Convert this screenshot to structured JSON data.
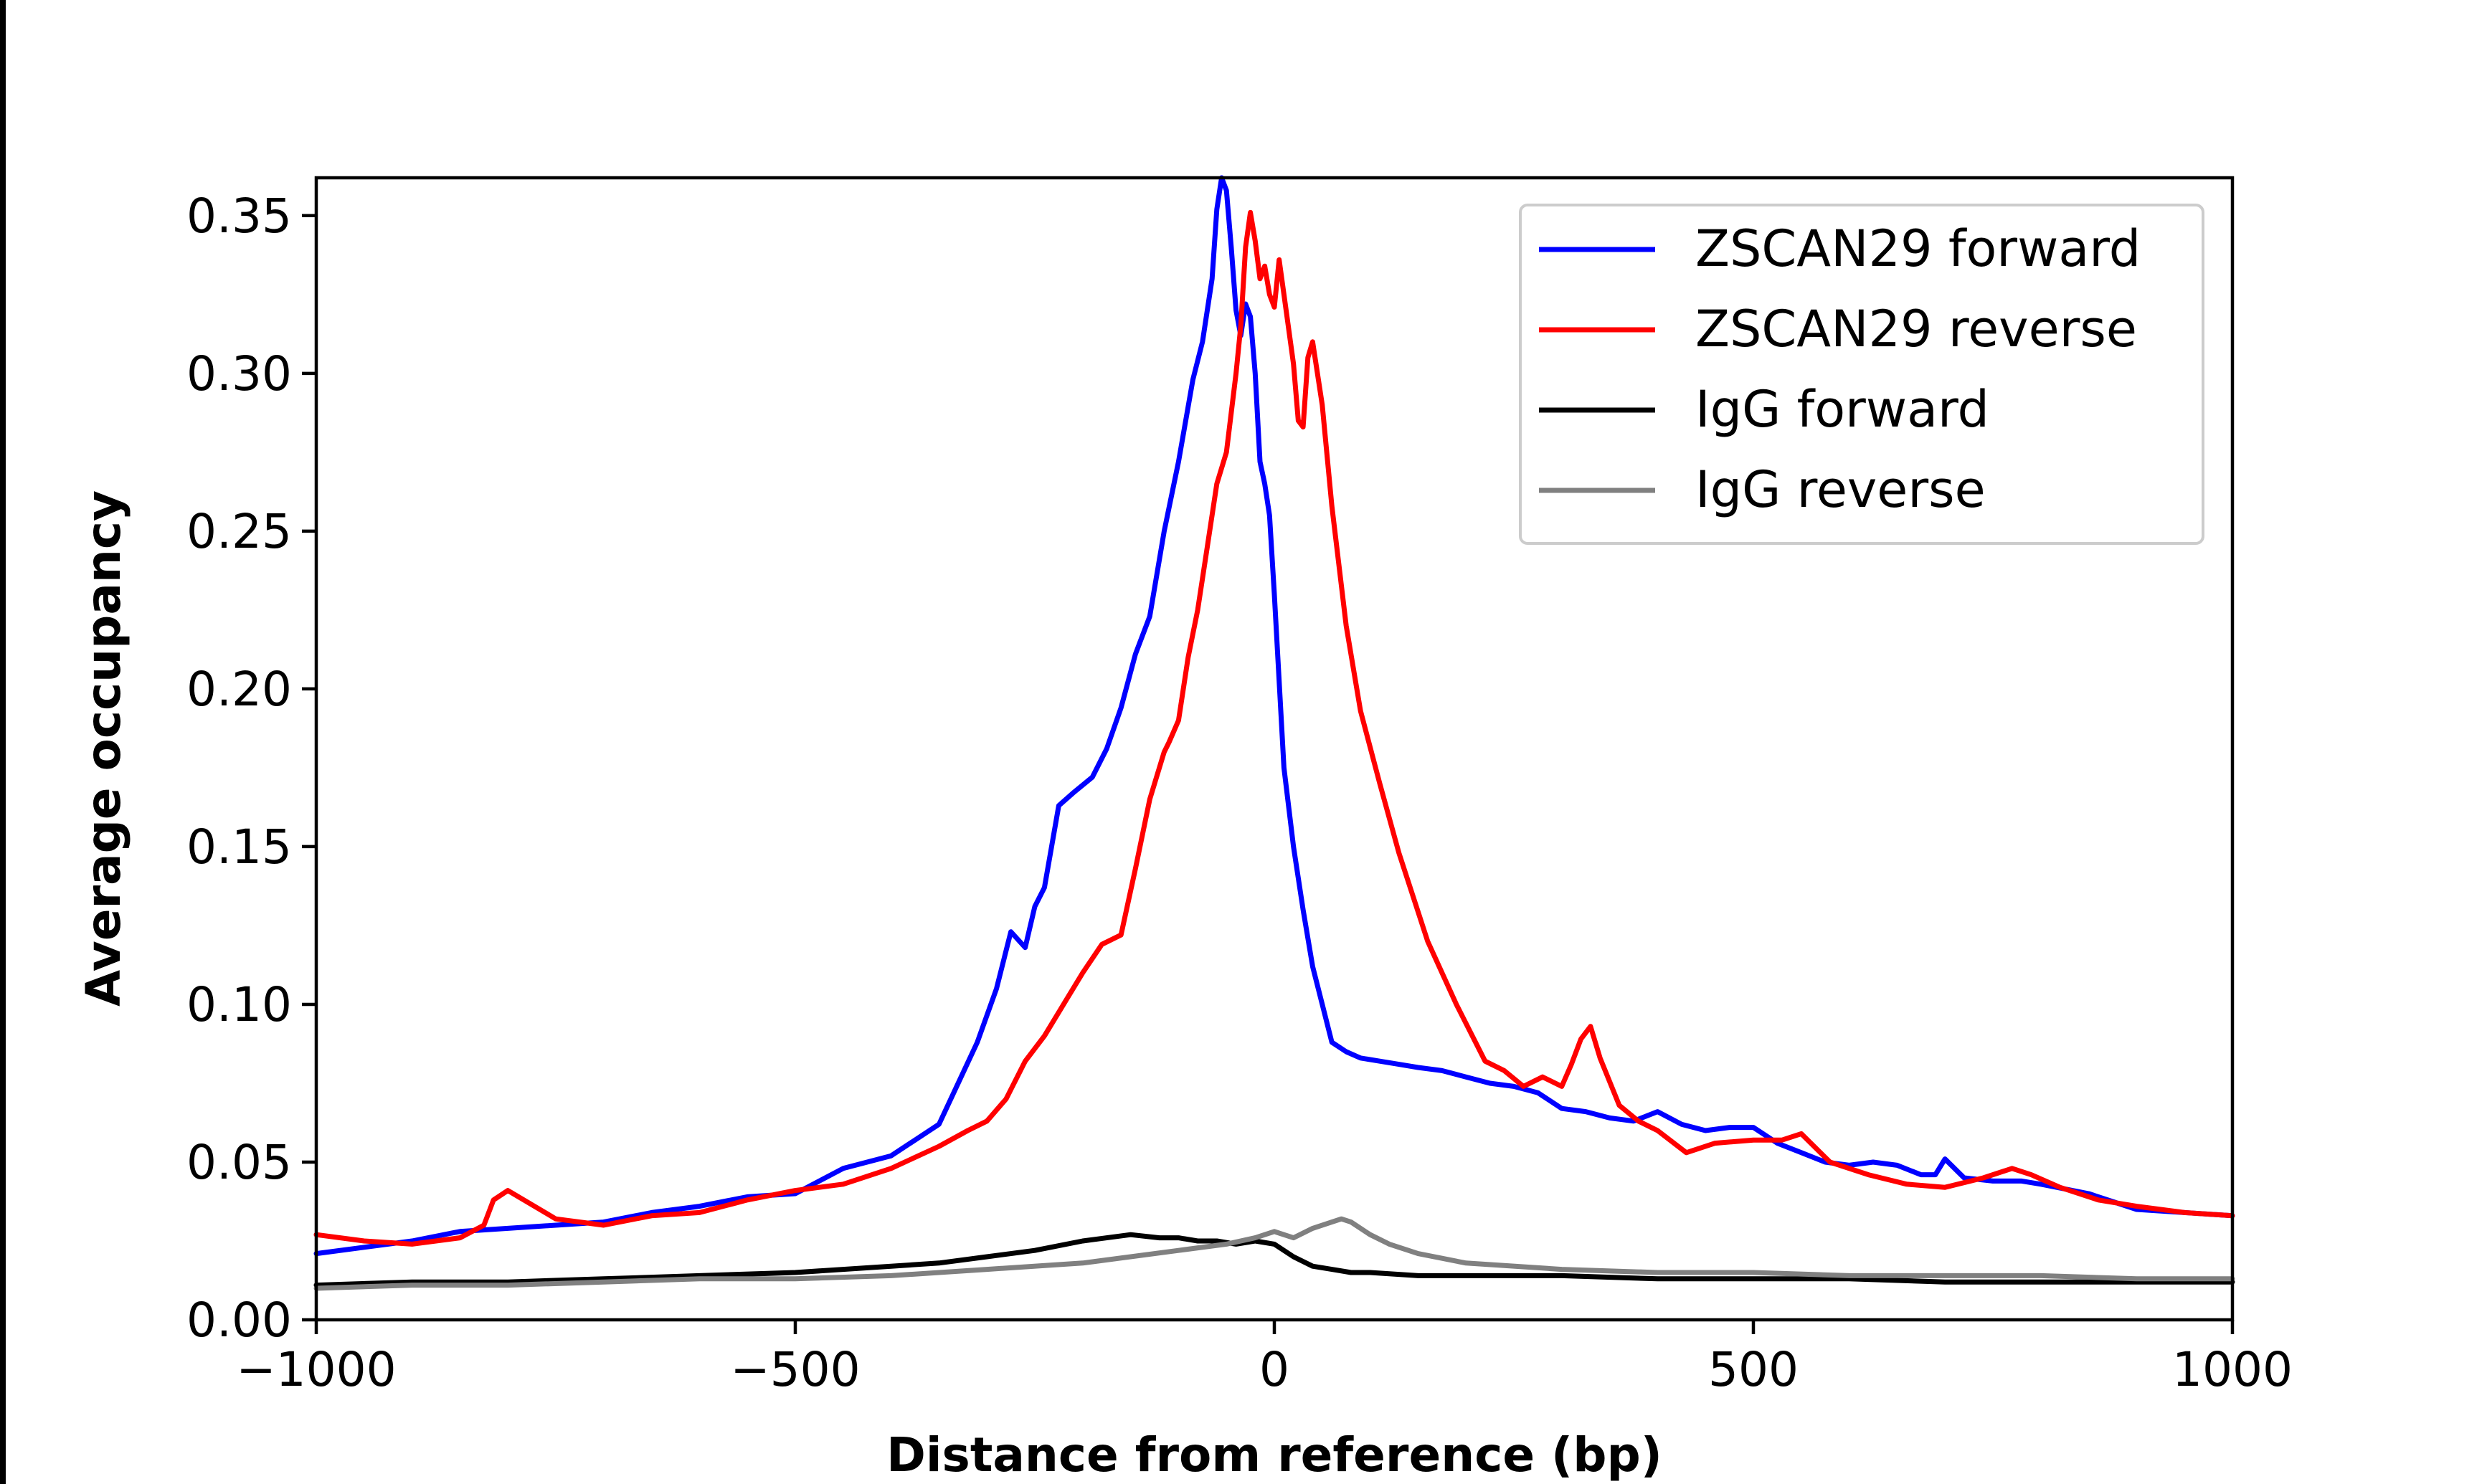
{
  "chart_data": {
    "type": "line",
    "title": "",
    "xlabel": "Distance from reference (bp)",
    "ylabel": "Average occupancy",
    "xlim": [
      -1000,
      1000
    ],
    "ylim": [
      0,
      0.362
    ],
    "x_ticks": [
      -1000,
      -500,
      0,
      500,
      1000
    ],
    "x_tick_labels": [
      "−1000",
      "−500",
      "0",
      "500",
      "1000"
    ],
    "y_ticks": [
      0.0,
      0.05,
      0.1,
      0.15,
      0.2,
      0.25,
      0.3,
      0.35
    ],
    "y_tick_labels": [
      "0.00",
      "0.05",
      "0.10",
      "0.15",
      "0.20",
      "0.25",
      "0.30",
      "0.35"
    ],
    "grid": false,
    "legend_position": "top-right",
    "series": [
      {
        "name": "ZSCAN29 forward",
        "color": "#0000ff",
        "x": [
          -1000,
          -950,
          -900,
          -850,
          -800,
          -750,
          -700,
          -650,
          -600,
          -550,
          -500,
          -450,
          -400,
          -350,
          -330,
          -310,
          -290,
          -275,
          -260,
          -250,
          -240,
          -225,
          -210,
          -190,
          -175,
          -160,
          -145,
          -130,
          -115,
          -100,
          -85,
          -75,
          -65,
          -60,
          -55,
          -50,
          -45,
          -40,
          -35,
          -30,
          -25,
          -20,
          -15,
          -10,
          -5,
          0,
          10,
          20,
          30,
          40,
          50,
          60,
          75,
          90,
          110,
          130,
          150,
          175,
          200,
          225,
          250,
          275,
          300,
          325,
          350,
          375,
          400,
          425,
          450,
          475,
          500,
          525,
          550,
          575,
          600,
          625,
          650,
          675,
          690,
          700,
          720,
          750,
          780,
          800,
          850,
          900,
          950,
          1000
        ],
        "y": [
          0.021,
          0.023,
          0.025,
          0.028,
          0.029,
          0.03,
          0.031,
          0.034,
          0.036,
          0.039,
          0.04,
          0.048,
          0.052,
          0.062,
          0.075,
          0.088,
          0.105,
          0.123,
          0.118,
          0.131,
          0.137,
          0.163,
          0.167,
          0.172,
          0.181,
          0.194,
          0.211,
          0.223,
          0.25,
          0.272,
          0.298,
          0.31,
          0.33,
          0.352,
          0.362,
          0.358,
          0.34,
          0.32,
          0.312,
          0.322,
          0.318,
          0.3,
          0.272,
          0.265,
          0.255,
          0.23,
          0.175,
          0.15,
          0.13,
          0.112,
          0.1,
          0.088,
          0.085,
          0.083,
          0.082,
          0.081,
          0.08,
          0.079,
          0.077,
          0.075,
          0.074,
          0.072,
          0.067,
          0.066,
          0.064,
          0.063,
          0.066,
          0.062,
          0.06,
          0.061,
          0.061,
          0.056,
          0.053,
          0.05,
          0.049,
          0.05,
          0.049,
          0.046,
          0.046,
          0.051,
          0.045,
          0.044,
          0.044,
          0.043,
          0.04,
          0.035,
          0.034,
          0.033
        ]
      },
      {
        "name": "ZSCAN29 reverse",
        "color": "#ff0000",
        "x": [
          -1000,
          -950,
          -900,
          -850,
          -825,
          -815,
          -800,
          -750,
          -700,
          -650,
          -600,
          -550,
          -500,
          -450,
          -400,
          -350,
          -320,
          -300,
          -280,
          -260,
          -240,
          -220,
          -200,
          -180,
          -160,
          -145,
          -130,
          -115,
          -110,
          -100,
          -90,
          -80,
          -70,
          -60,
          -50,
          -40,
          -35,
          -30,
          -25,
          -20,
          -15,
          -10,
          -5,
          0,
          5,
          10,
          20,
          25,
          30,
          35,
          40,
          50,
          60,
          75,
          90,
          110,
          130,
          160,
          190,
          220,
          240,
          260,
          280,
          300,
          310,
          320,
          330,
          340,
          360,
          380,
          400,
          430,
          460,
          500,
          530,
          550,
          580,
          620,
          660,
          700,
          740,
          770,
          790,
          820,
          860,
          900,
          950,
          1000
        ],
        "y": [
          0.027,
          0.025,
          0.024,
          0.026,
          0.03,
          0.038,
          0.041,
          0.032,
          0.03,
          0.033,
          0.034,
          0.038,
          0.041,
          0.043,
          0.048,
          0.055,
          0.06,
          0.063,
          0.07,
          0.082,
          0.09,
          0.1,
          0.11,
          0.119,
          0.122,
          0.143,
          0.165,
          0.18,
          0.183,
          0.19,
          0.21,
          0.225,
          0.245,
          0.265,
          0.275,
          0.3,
          0.315,
          0.34,
          0.351,
          0.342,
          0.33,
          0.334,
          0.325,
          0.321,
          0.336,
          0.325,
          0.303,
          0.285,
          0.283,
          0.305,
          0.31,
          0.29,
          0.258,
          0.22,
          0.193,
          0.17,
          0.148,
          0.12,
          0.1,
          0.082,
          0.079,
          0.074,
          0.077,
          0.074,
          0.081,
          0.089,
          0.093,
          0.083,
          0.068,
          0.063,
          0.06,
          0.053,
          0.056,
          0.057,
          0.057,
          0.059,
          0.05,
          0.046,
          0.043,
          0.042,
          0.045,
          0.048,
          0.046,
          0.042,
          0.038,
          0.036,
          0.034,
          0.033
        ]
      },
      {
        "name": "IgG forward",
        "color": "#000000",
        "x": [
          -1000,
          -900,
          -800,
          -700,
          -600,
          -500,
          -400,
          -350,
          -300,
          -250,
          -200,
          -150,
          -120,
          -100,
          -80,
          -60,
          -40,
          -20,
          0,
          20,
          40,
          60,
          80,
          100,
          150,
          200,
          300,
          400,
          500,
          600,
          700,
          800,
          900,
          1000
        ],
        "y": [
          0.011,
          0.012,
          0.012,
          0.013,
          0.014,
          0.015,
          0.017,
          0.018,
          0.02,
          0.022,
          0.025,
          0.027,
          0.026,
          0.026,
          0.025,
          0.025,
          0.024,
          0.025,
          0.024,
          0.02,
          0.017,
          0.016,
          0.015,
          0.015,
          0.014,
          0.014,
          0.014,
          0.013,
          0.013,
          0.013,
          0.012,
          0.012,
          0.012,
          0.012
        ]
      },
      {
        "name": "IgG reverse",
        "color": "#808080",
        "x": [
          -1000,
          -900,
          -800,
          -700,
          -600,
          -500,
          -400,
          -300,
          -200,
          -100,
          -50,
          -20,
          0,
          20,
          40,
          60,
          70,
          80,
          100,
          120,
          150,
          200,
          300,
          400,
          500,
          600,
          700,
          800,
          900,
          1000
        ],
        "y": [
          0.01,
          0.011,
          0.011,
          0.012,
          0.013,
          0.013,
          0.014,
          0.016,
          0.018,
          0.022,
          0.024,
          0.026,
          0.028,
          0.026,
          0.029,
          0.031,
          0.032,
          0.031,
          0.027,
          0.024,
          0.021,
          0.018,
          0.016,
          0.015,
          0.015,
          0.014,
          0.014,
          0.014,
          0.013,
          0.013
        ]
      }
    ]
  }
}
